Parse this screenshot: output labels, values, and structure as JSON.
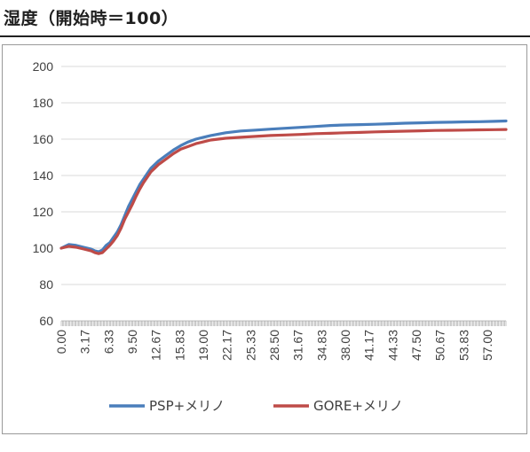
{
  "page": {
    "title": "湿度（開始時＝100）"
  },
  "chart_data": {
    "type": "line",
    "title": "湿度（開始時＝100）",
    "xlabel": "",
    "ylabel": "",
    "ylim": [
      60,
      200
    ],
    "yticks": [
      60,
      80,
      100,
      120,
      140,
      160,
      180,
      200
    ],
    "xlim": [
      0,
      59.5
    ],
    "xtick_labels": [
      "0.00",
      "3.17",
      "6.33",
      "9.50",
      "12.67",
      "15.83",
      "19.00",
      "22.17",
      "25.33",
      "28.50",
      "31.67",
      "34.83",
      "38.00",
      "41.17",
      "44.33",
      "47.50",
      "50.67",
      "53.83",
      "57.00"
    ],
    "grid": "horizontal",
    "legend_position": "bottom",
    "series": [
      {
        "name": "PSP+メリノ",
        "color": "#4a7ebb",
        "x": [
          0,
          0.5,
          1,
          2,
          3,
          4,
          4.5,
          5,
          5.5,
          6,
          6.5,
          7,
          7.5,
          8,
          8.5,
          9,
          9.5,
          10,
          10.5,
          11,
          11.5,
          12,
          12.5,
          13,
          14,
          15,
          16,
          17,
          18,
          19,
          20,
          22,
          24,
          26,
          28,
          30,
          32,
          34,
          36,
          38,
          40,
          42,
          44,
          46,
          48,
          50,
          52,
          54,
          56,
          58,
          59.5
        ],
        "values": [
          100,
          101,
          102,
          101.5,
          100.5,
          99.5,
          98.5,
          98,
          99,
          101.5,
          103,
          106,
          109,
          113,
          118,
          123,
          127,
          131,
          135,
          138,
          141,
          144,
          146,
          148,
          151,
          154,
          156.5,
          158.5,
          160,
          161,
          162,
          163.5,
          164.5,
          165,
          165.5,
          166,
          166.5,
          167,
          167.5,
          167.8,
          168,
          168.2,
          168.5,
          168.8,
          169,
          169.2,
          169.3,
          169.5,
          169.6,
          169.8,
          170
        ]
      },
      {
        "name": "GORE+メリノ",
        "color": "#be4b48",
        "x": [
          0,
          0.5,
          1,
          2,
          3,
          4,
          4.5,
          5,
          5.5,
          6,
          6.5,
          7,
          7.5,
          8,
          8.5,
          9,
          9.5,
          10,
          10.5,
          11,
          11.5,
          12,
          12.5,
          13,
          14,
          15,
          16,
          17,
          18,
          19,
          20,
          22,
          24,
          26,
          28,
          30,
          32,
          34,
          36,
          38,
          40,
          42,
          44,
          46,
          48,
          50,
          52,
          54,
          56,
          58,
          59.5
        ],
        "values": [
          100,
          100.5,
          101,
          100.5,
          99.5,
          98.5,
          97.5,
          97,
          97.5,
          99.5,
          101.5,
          104,
          107,
          111,
          116,
          120,
          124,
          128.5,
          132.5,
          136,
          139,
          142,
          144,
          146,
          149,
          152,
          154.5,
          156,
          157.5,
          158.5,
          159.5,
          160.5,
          161,
          161.5,
          162,
          162.3,
          162.6,
          163,
          163.2,
          163.5,
          163.7,
          164,
          164.2,
          164.4,
          164.6,
          164.8,
          164.9,
          165,
          165.1,
          165.2,
          165.3
        ]
      }
    ]
  }
}
